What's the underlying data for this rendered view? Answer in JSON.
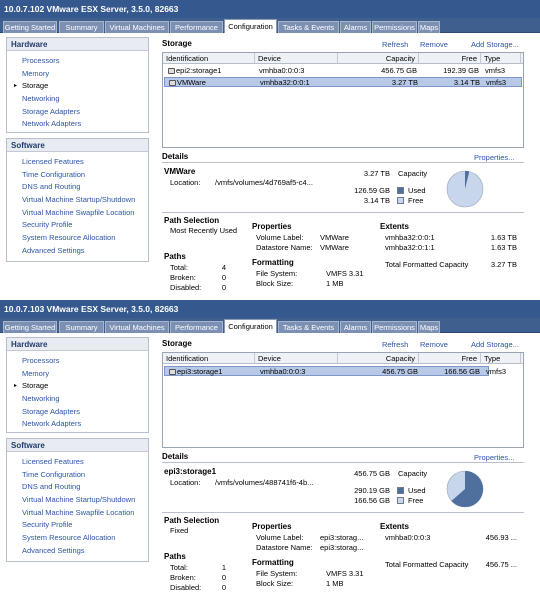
{
  "panels": [
    {
      "title": "10.0.7.102 VMware ESX Server, 3.5.0, 82663",
      "tabs": [
        "Getting Started",
        "Summary",
        "Virtual Machines",
        "Performance",
        "Configuration",
        "Tasks & Events",
        "Alarms",
        "Permissions",
        "Maps"
      ],
      "active_tab": 4,
      "hardware": {
        "heading": "Hardware",
        "items": [
          "Processors",
          "Memory",
          "Storage",
          "Networking",
          "Storage Adapters",
          "Network Adapters"
        ],
        "selected": 2
      },
      "software": {
        "heading": "Software",
        "items": [
          "Licensed Features",
          "Time Configuration",
          "DNS and Routing",
          "Virtual Machine Startup/Shutdown",
          "Virtual Machine Swapfile Location",
          "Security Profile",
          "System Resource Allocation",
          "Advanced Settings"
        ]
      },
      "storage": {
        "heading": "Storage",
        "actions": {
          "refresh": "Refresh",
          "remove": "Remove",
          "add": "Add Storage..."
        },
        "columns": [
          "Identification",
          "Device",
          "Capacity",
          "Free",
          "Type"
        ],
        "rows": [
          {
            "id": "epi2:storage1",
            "device": "vmhba0:0:0:3",
            "capacity": "456.75 GB",
            "free": "192.39 GB",
            "type": "vmfs3",
            "selected": false
          },
          {
            "id": "VMWare",
            "device": "vmhba32:0:0:1",
            "capacity": "3.27 TB",
            "free": "3.14 TB",
            "type": "vmfs3",
            "selected": true
          }
        ]
      },
      "details": {
        "heading": "Details",
        "properties_link": "Properties...",
        "name": "VMWare",
        "location_label": "Location:",
        "location": "/vmfs/volumes/4d769af5-c4...",
        "capacity_value": "3.27 TB",
        "capacity_label": "Capacity",
        "used_value": "126.59 GB",
        "used_label": "Used",
        "free_value": "3.14 TB",
        "free_label": "Free",
        "used_fraction": 0.038,
        "path_selection_heading": "Path Selection",
        "path_selection": "Most Recently Used",
        "properties_heading": "Properties",
        "volume_label_key": "Volume Label:",
        "volume_label": "VMWare",
        "datastore_name_key": "Datastore Name:",
        "datastore_name": "VMWare",
        "extents_heading": "Extents",
        "extents": [
          {
            "name": "vmhba32:0:0:1",
            "size": "1.63 TB"
          },
          {
            "name": "vmhba32:0:1:1",
            "size": "1.63 TB"
          }
        ],
        "total_label": "Total Formatted Capacity",
        "total_value": "3.27 TB",
        "paths_heading": "Paths",
        "paths": [
          {
            "label": "Total:",
            "value": "4"
          },
          {
            "label": "Broken:",
            "value": "0"
          },
          {
            "label": "Disabled:",
            "value": "0"
          }
        ],
        "formatting_heading": "Formatting",
        "file_system_key": "File System:",
        "file_system": "VMFS 3.31",
        "block_size_key": "Block Size:",
        "block_size": "1 MB"
      },
      "colors": {
        "used": "#4f6f9f",
        "free": "#c7d6ea"
      }
    },
    {
      "title": "10.0.7.103 VMware ESX Server, 3.5.0, 82663",
      "tabs": [
        "Getting Started",
        "Summary",
        "Virtual Machines",
        "Performance",
        "Configuration",
        "Tasks & Events",
        "Alarms",
        "Permissions",
        "Maps"
      ],
      "active_tab": 4,
      "hardware": {
        "heading": "Hardware",
        "items": [
          "Processors",
          "Memory",
          "Storage",
          "Networking",
          "Storage Adapters",
          "Network Adapters"
        ],
        "selected": 2
      },
      "software": {
        "heading": "Software",
        "items": [
          "Licensed Features",
          "Time Configuration",
          "DNS and Routing",
          "Virtual Machine Startup/Shutdown",
          "Virtual Machine Swapfile Location",
          "Security Profile",
          "System Resource Allocation",
          "Advanced Settings"
        ]
      },
      "storage": {
        "heading": "Storage",
        "actions": {
          "refresh": "Refresh",
          "remove": "Remove",
          "add": "Add Storage..."
        },
        "columns": [
          "Identification",
          "Device",
          "Capacity",
          "Free",
          "Type"
        ],
        "rows": [
          {
            "id": "epi3:storage1",
            "device": "vmhba0:0:0:3",
            "capacity": "456.75 GB",
            "free": "166.56 GB",
            "type": "vmfs3",
            "selected": true
          }
        ]
      },
      "details": {
        "heading": "Details",
        "properties_link": "Properties...",
        "name": "epi3:storage1",
        "location_label": "Location:",
        "location": "/vmfs/volumes/488741f6-4b...",
        "capacity_value": "456.75 GB",
        "capacity_label": "Capacity",
        "used_value": "290.19 GB",
        "used_label": "Used",
        "free_value": "166.56 GB",
        "free_label": "Free",
        "used_fraction": 0.635,
        "path_selection_heading": "Path Selection",
        "path_selection": "Fixed",
        "properties_heading": "Properties",
        "volume_label_key": "Volume Label:",
        "volume_label": "epi3:storag...",
        "datastore_name_key": "Datastore Name:",
        "datastore_name": "epi3:storag...",
        "extents_heading": "Extents",
        "extents": [
          {
            "name": "vmhba0:0:0:3",
            "size": "456.93 ..."
          }
        ],
        "total_label": "Total Formatted Capacity",
        "total_value": "456.75 ...",
        "paths_heading": "Paths",
        "paths": [
          {
            "label": "Total:",
            "value": "1"
          },
          {
            "label": "Broken:",
            "value": "0"
          },
          {
            "label": "Disabled:",
            "value": "0"
          }
        ],
        "formatting_heading": "Formatting",
        "file_system_key": "File System:",
        "file_system": "VMFS 3.31",
        "block_size_key": "Block Size:",
        "block_size": "1 MB"
      },
      "colors": {
        "used": "#4f6f9f",
        "free": "#c7d6ea"
      }
    }
  ]
}
